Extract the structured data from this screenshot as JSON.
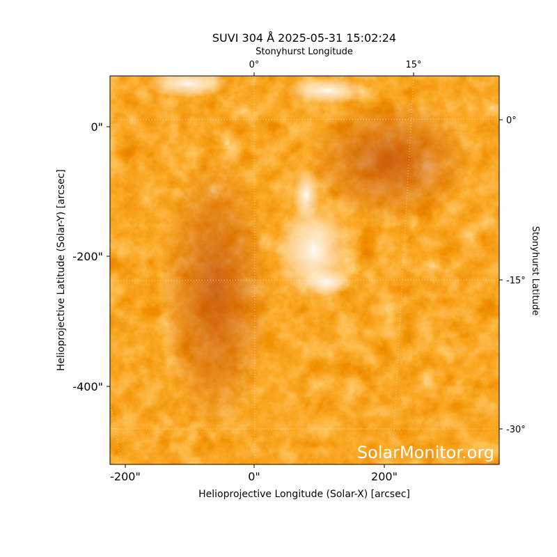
{
  "title": "SUVI 304 Å 2025-05-31 15:02:24",
  "axes": {
    "top": {
      "label": "Stonyhurst Longitude",
      "ticks": [
        "0°",
        "15°"
      ]
    },
    "right": {
      "label": "Stonyhurst Latitude",
      "ticks": [
        "0°",
        "-15°",
        "-30°"
      ]
    },
    "bottom": {
      "label": "Helioprojective Longitude (Solar-X) [arcsec]",
      "ticks": [
        "-200\"",
        "0\"",
        "200\""
      ]
    },
    "left": {
      "label": "Helioprojective Latitude (Solar-Y) [arcsec]",
      "ticks": [
        "0\"",
        "-200\"",
        "-400\""
      ]
    }
  },
  "watermark": "SolarMonitor.org"
}
